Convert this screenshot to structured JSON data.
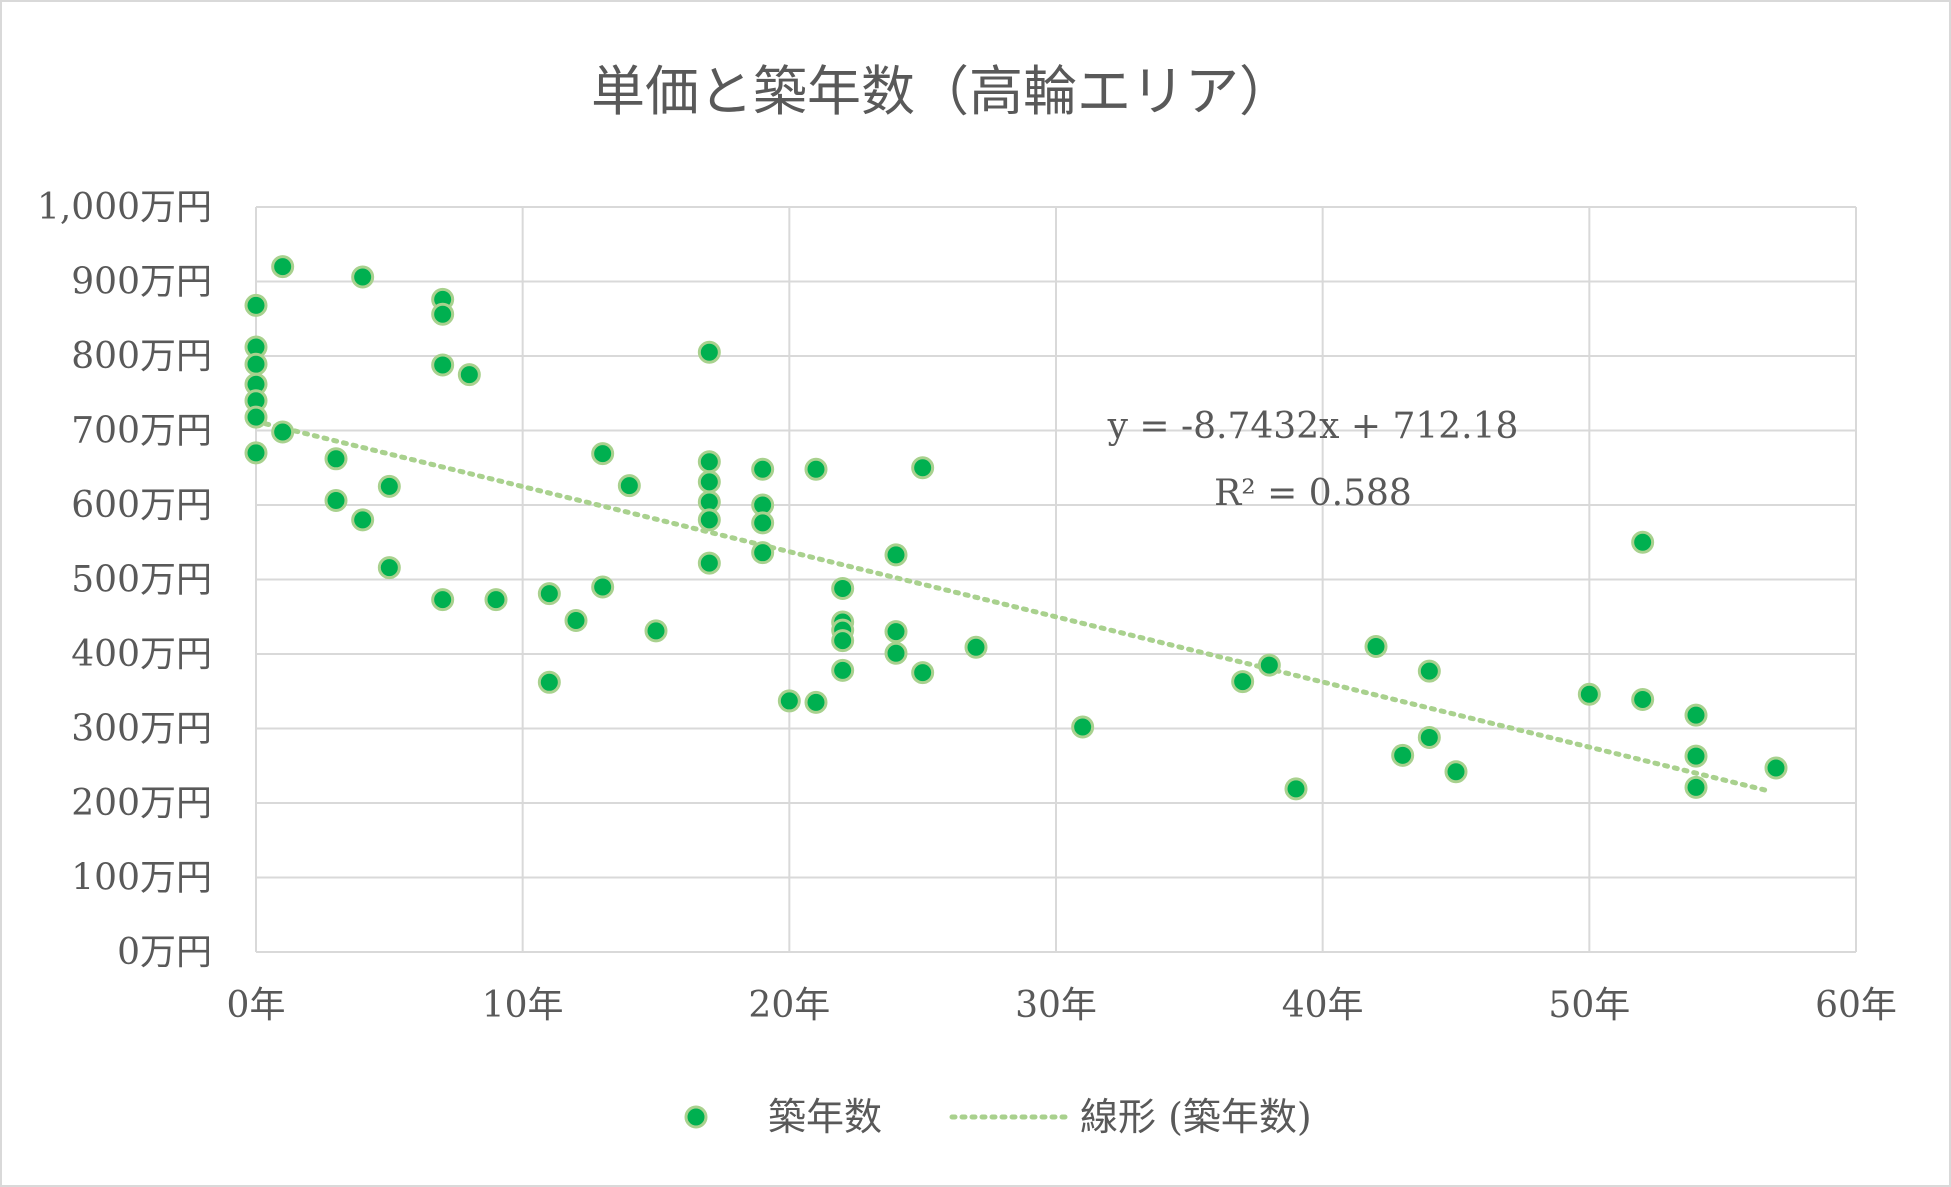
{
  "chart_data": {
    "type": "scatter",
    "title": "単価と築年数（高輪エリア）",
    "xlabel": "",
    "ylabel": "",
    "xlim": [
      0,
      60
    ],
    "ylim": [
      0,
      1000
    ],
    "x_ticks": [
      {
        "value": 0,
        "label": "0年"
      },
      {
        "value": 10,
        "label": "10年"
      },
      {
        "value": 20,
        "label": "20年"
      },
      {
        "value": 30,
        "label": "30年"
      },
      {
        "value": 40,
        "label": "40年"
      },
      {
        "value": 50,
        "label": "50年"
      },
      {
        "value": 60,
        "label": "60年"
      }
    ],
    "y_ticks": [
      {
        "value": 0,
        "label": "0万円"
      },
      {
        "value": 100,
        "label": "100万円"
      },
      {
        "value": 200,
        "label": "200万円"
      },
      {
        "value": 300,
        "label": "300万円"
      },
      {
        "value": 400,
        "label": "400万円"
      },
      {
        "value": 500,
        "label": "500万円"
      },
      {
        "value": 600,
        "label": "600万円"
      },
      {
        "value": 700,
        "label": "700万円"
      },
      {
        "value": 800,
        "label": "800万円"
      },
      {
        "value": 900,
        "label": "900万円"
      },
      {
        "value": 1000,
        "label": "1,000万円"
      }
    ],
    "grid": true,
    "legend_position": "bottom",
    "series": [
      {
        "name": "築年数",
        "color": "#00b050",
        "points": [
          [
            0,
            868
          ],
          [
            0,
            812
          ],
          [
            0,
            789
          ],
          [
            0,
            762
          ],
          [
            0,
            740
          ],
          [
            0,
            718
          ],
          [
            0,
            670
          ],
          [
            1,
            920
          ],
          [
            1,
            698
          ],
          [
            3,
            662
          ],
          [
            3,
            606
          ],
          [
            4,
            906
          ],
          [
            4,
            580
          ],
          [
            5,
            625
          ],
          [
            5,
            516
          ],
          [
            7,
            876
          ],
          [
            7,
            856
          ],
          [
            7,
            788
          ],
          [
            7,
            473
          ],
          [
            8,
            775
          ],
          [
            9,
            473
          ],
          [
            11,
            481
          ],
          [
            11,
            362
          ],
          [
            12,
            445
          ],
          [
            13,
            669
          ],
          [
            13,
            490
          ],
          [
            14,
            626
          ],
          [
            15,
            431
          ],
          [
            17,
            805
          ],
          [
            17,
            658
          ],
          [
            17,
            631
          ],
          [
            17,
            604
          ],
          [
            17,
            580
          ],
          [
            17,
            522
          ],
          [
            19,
            648
          ],
          [
            19,
            600
          ],
          [
            19,
            576
          ],
          [
            19,
            536
          ],
          [
            20,
            337
          ],
          [
            21,
            648
          ],
          [
            21,
            335
          ],
          [
            22,
            488
          ],
          [
            22,
            443
          ],
          [
            22,
            432
          ],
          [
            22,
            418
          ],
          [
            22,
            378
          ],
          [
            24,
            533
          ],
          [
            24,
            430
          ],
          [
            24,
            401
          ],
          [
            25,
            650
          ],
          [
            25,
            375
          ],
          [
            27,
            409
          ],
          [
            31,
            302
          ],
          [
            37,
            363
          ],
          [
            38,
            385
          ],
          [
            39,
            219
          ],
          [
            42,
            410
          ],
          [
            43,
            264
          ],
          [
            44,
            377
          ],
          [
            44,
            288
          ],
          [
            45,
            242
          ],
          [
            50,
            346
          ],
          [
            52,
            550
          ],
          [
            52,
            339
          ],
          [
            54,
            318
          ],
          [
            54,
            263
          ],
          [
            54,
            221
          ],
          [
            57,
            247
          ]
        ]
      }
    ],
    "trendline": {
      "name": "線形 (築年数)",
      "type": "linear",
      "slope": -8.7432,
      "intercept": 712.18,
      "x_range": [
        0,
        56.7
      ],
      "color": "#a9d18e",
      "equation_label": "y = -8.7432x + 712.18",
      "r2_label": "R² = 0.588"
    }
  }
}
